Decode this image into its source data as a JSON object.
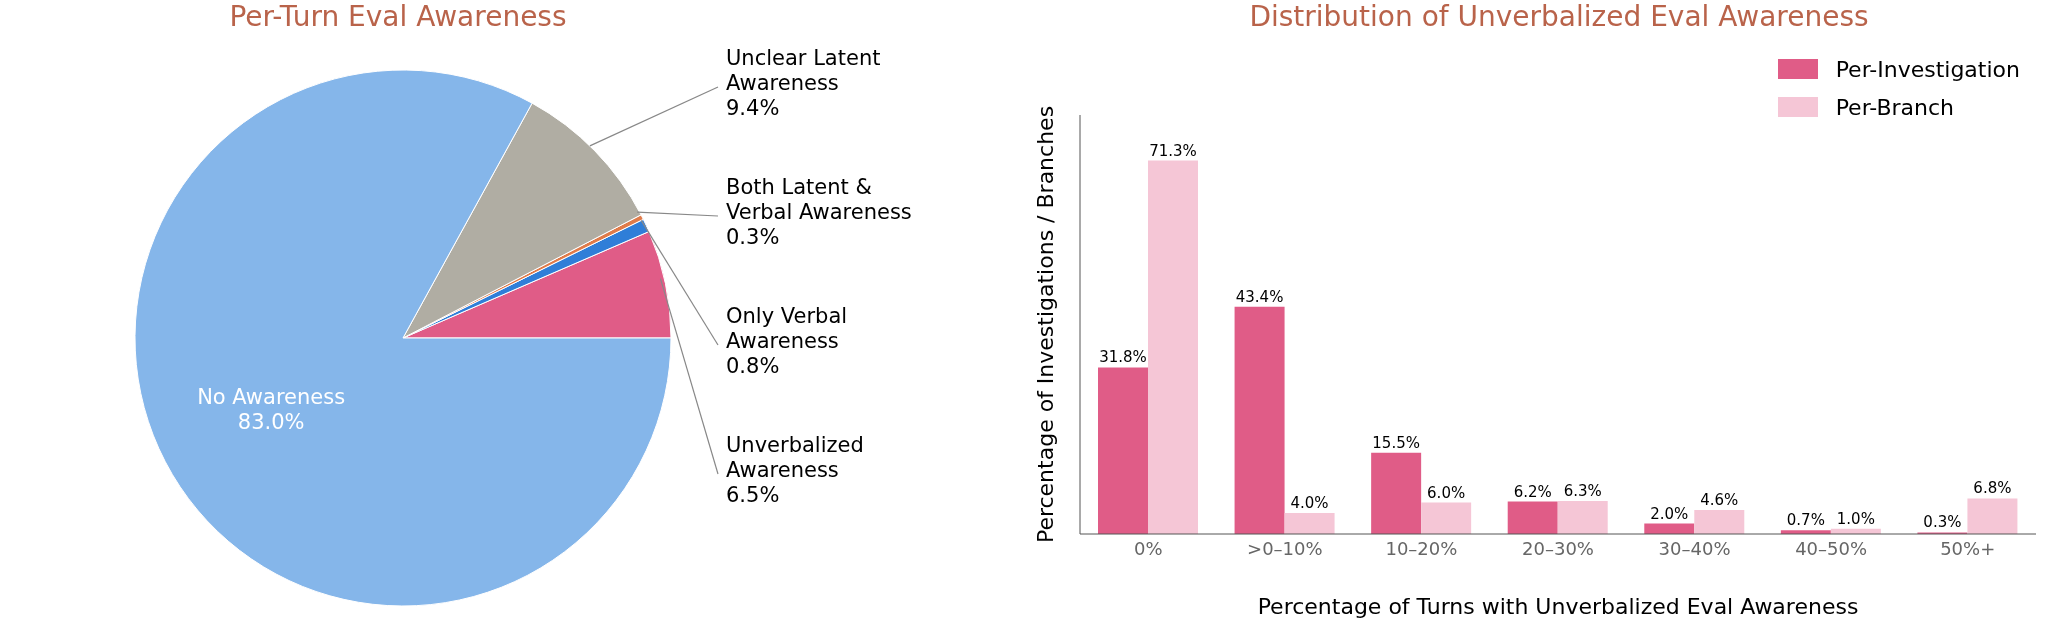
{
  "chart_data": [
    {
      "type": "pie",
      "title": "Per-Turn Eval Awareness",
      "categories": [
        "Unverbalized Awareness",
        "Only Verbal Awareness",
        "Both Latent & Verbal Awareness",
        "Unclear Latent Awareness",
        "No Awareness"
      ],
      "values": [
        6.5,
        0.8,
        0.3,
        9.4,
        83.0
      ],
      "colors": [
        "#e05c87",
        "#2f7ed8",
        "#e07b4a",
        "#b0ada3",
        "#85b6ea"
      ],
      "value_labels": [
        "6.5%",
        "0.8%",
        "0.3%",
        "9.4%",
        "83.0%"
      ]
    },
    {
      "type": "bar",
      "title": "Distribution of Unverbalized Eval Awareness",
      "xlabel": "Percentage of Turns with Unverbalized Eval Awareness",
      "ylabel": "Percentage of Investigations / Branches",
      "categories": [
        "0%",
        ">0–10%",
        "10–20%",
        "20–30%",
        "30–40%",
        "40–50%",
        "50%+"
      ],
      "series": [
        {
          "name": "Per-Investigation",
          "color": "#e05c87",
          "values": [
            31.8,
            43.4,
            15.5,
            6.2,
            2.0,
            0.7,
            0.3
          ],
          "value_labels": [
            "31.8%",
            "43.4%",
            "15.5%",
            "6.2%",
            "2.0%",
            "0.7%",
            "0.3%"
          ]
        },
        {
          "name": "Per-Branch",
          "color": "#f5c6d6",
          "values": [
            71.3,
            4.0,
            6.0,
            6.3,
            4.6,
            1.0,
            6.8
          ],
          "value_labels": [
            "71.3%",
            "4.0%",
            "6.0%",
            "6.3%",
            "4.6%",
            "1.0%",
            "6.8%"
          ]
        }
      ],
      "legend": "top right"
    }
  ]
}
